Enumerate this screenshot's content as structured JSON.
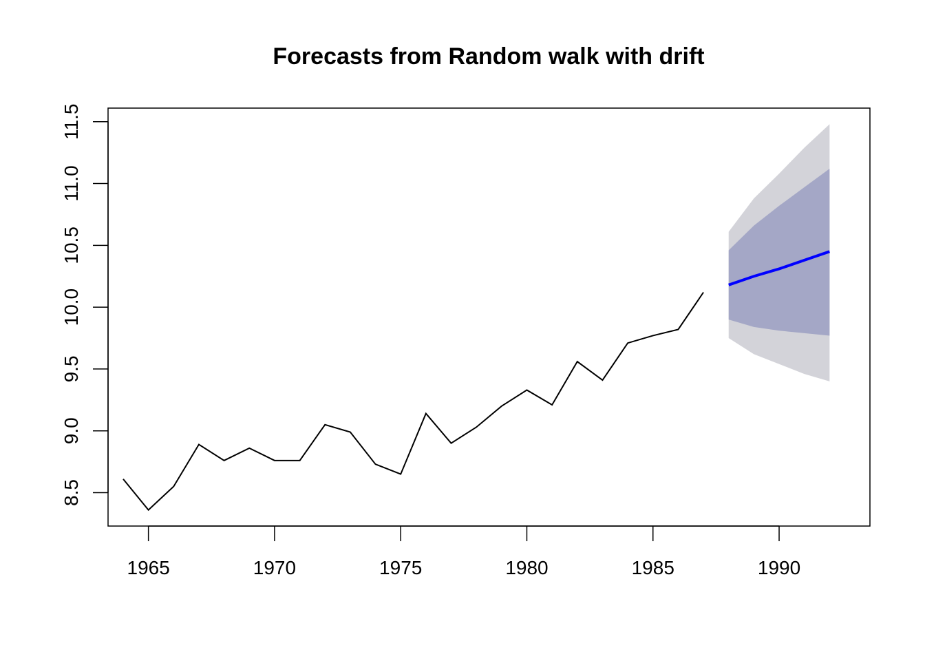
{
  "chart_data": {
    "type": "line",
    "title": "Forecasts from Random walk with drift",
    "xlabel": "",
    "ylabel": "",
    "xlim": [
      1963.4,
      1993.6
    ],
    "ylim": [
      8.23,
      11.61
    ],
    "x_ticks": [
      1965,
      1970,
      1975,
      1980,
      1985,
      1990
    ],
    "y_ticks": [
      8.5,
      9.0,
      9.5,
      10.0,
      10.5,
      11.0,
      11.5
    ],
    "y_tick_labels": [
      "8.5",
      "9.0",
      "9.5",
      "10.0",
      "10.5",
      "11.0",
      "11.5"
    ],
    "grid": false,
    "legend": "none",
    "historical": {
      "color": "#000000",
      "x": [
        1964,
        1965,
        1966,
        1967,
        1968,
        1969,
        1970,
        1971,
        1972,
        1973,
        1974,
        1975,
        1976,
        1977,
        1978,
        1979,
        1980,
        1981,
        1982,
        1983,
        1984,
        1985,
        1986,
        1987
      ],
      "y": [
        8.61,
        8.36,
        8.55,
        8.89,
        8.76,
        8.86,
        8.76,
        8.76,
        9.05,
        8.99,
        8.73,
        8.65,
        9.14,
        8.9,
        9.03,
        9.2,
        9.33,
        9.21,
        9.56,
        9.41,
        9.71,
        9.77,
        9.82,
        10.12
      ]
    },
    "forecast": {
      "color": "#0000ff",
      "x": [
        1988,
        1989,
        1990,
        1991,
        1992
      ],
      "mean": [
        10.18,
        10.25,
        10.31,
        10.38,
        10.45
      ],
      "lower80": [
        9.9,
        9.84,
        9.81,
        9.79,
        9.77
      ],
      "upper80": [
        10.46,
        10.66,
        10.82,
        10.97,
        11.12
      ],
      "lower95": [
        9.75,
        9.62,
        9.54,
        9.46,
        9.4
      ],
      "upper95": [
        10.61,
        10.88,
        11.08,
        11.29,
        11.48
      ],
      "band80_color": "#a4a7c6",
      "band95_color": "#d3d3d9"
    }
  }
}
